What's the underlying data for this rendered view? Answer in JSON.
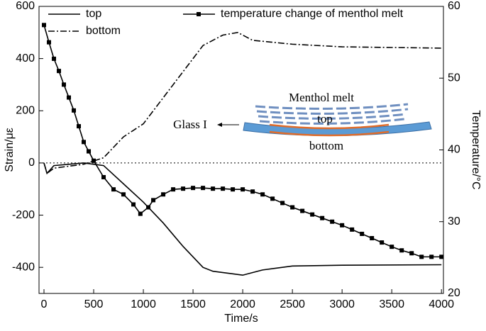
{
  "chart_data": {
    "type": "line",
    "xlabel": "Time/s",
    "ylabel": "Strain/με",
    "y2label": "Temperature/°C",
    "xlim": [
      -50,
      4020
    ],
    "ylim": [
      -500,
      600
    ],
    "y2lim": [
      20,
      60
    ],
    "xticks": [
      0,
      500,
      1000,
      1500,
      2000,
      2500,
      3000,
      3500,
      4000
    ],
    "yticks": [
      -400,
      -200,
      0,
      200,
      400,
      600
    ],
    "y2ticks": [
      20,
      30,
      40,
      50,
      60
    ],
    "reference_line": 0,
    "series": [
      {
        "name": "top",
        "color": "#000000",
        "style": "solid",
        "x": [
          0,
          30,
          100,
          400,
          600,
          800,
          1000,
          1200,
          1400,
          1600,
          1700,
          2000,
          2200,
          2500,
          3000,
          4000
        ],
        "values": [
          0,
          -40,
          -10,
          0,
          -10,
          -80,
          -150,
          -230,
          -320,
          -400,
          -415,
          -430,
          -410,
          -395,
          -392,
          -390
        ]
      },
      {
        "name": "bottom",
        "color": "#000000",
        "style": "dashdot",
        "x": [
          0,
          30,
          100,
          400,
          600,
          800,
          1000,
          1200,
          1400,
          1600,
          1800,
          1950,
          2100,
          2500,
          3000,
          4000
        ],
        "values": [
          0,
          -40,
          -20,
          -5,
          20,
          100,
          150,
          250,
          350,
          450,
          490,
          500,
          470,
          455,
          445,
          440
        ]
      },
      {
        "name": "temperature change of menthol melt",
        "color": "#000000",
        "style": "markers",
        "axis": "y2",
        "x": [
          0,
          50,
          100,
          150,
          200,
          250,
          300,
          350,
          400,
          450,
          500,
          600,
          700,
          800,
          900,
          970,
          1050,
          1100,
          1200,
          1300,
          1400,
          1500,
          1600,
          1700,
          1800,
          1900,
          2000,
          2100,
          2200,
          2300,
          2400,
          2500,
          2600,
          2700,
          2800,
          2900,
          3000,
          3100,
          3200,
          3300,
          3400,
          3500,
          3600,
          3700,
          3800,
          3900,
          4000
        ],
        "values": [
          57.4,
          55,
          52.7,
          51,
          49.1,
          47.3,
          45.5,
          43.3,
          41.1,
          39.8,
          38.5,
          36.2,
          34.5,
          33.8,
          32.4,
          31.1,
          32.0,
          33.0,
          33.8,
          34.5,
          34.6,
          34.7,
          34.7,
          34.6,
          34.6,
          34.5,
          34.5,
          34.2,
          33.8,
          33.2,
          32.6,
          32.0,
          31.5,
          31.0,
          30.5,
          30.0,
          29.5,
          28.9,
          28.3,
          27.7,
          27.1,
          26.5,
          26.0,
          25.6,
          25.1,
          25.1,
          25.1
        ]
      }
    ],
    "annotations": [
      "Menthol melt",
      "top",
      "bottom",
      "Glass I"
    ]
  }
}
